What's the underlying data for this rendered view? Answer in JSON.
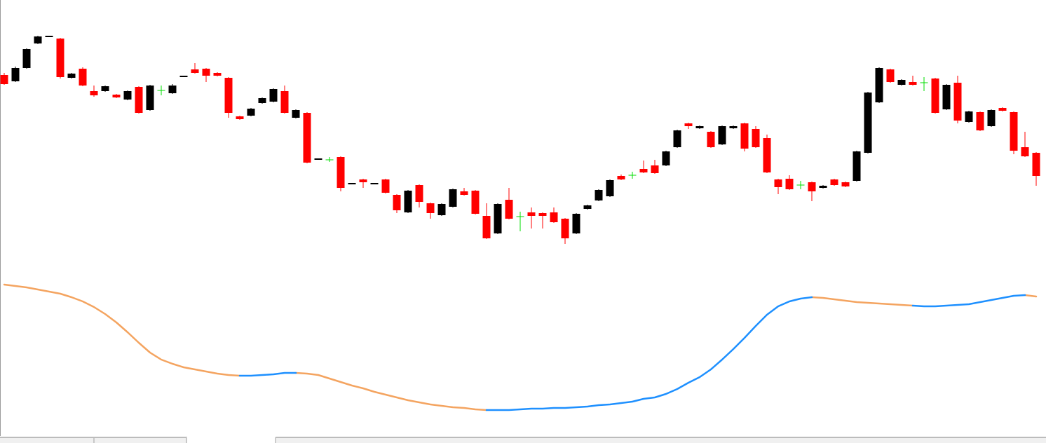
{
  "chart_data": [
    {
      "type": "candlestick",
      "ylim": [
        0,
        400
      ],
      "up_color": "#000000",
      "down_color": "#ff0000",
      "doji_color": "#00dd00",
      "open": [
        293,
        284,
        303,
        338,
        347,
        345,
        289,
        302,
        270,
        270,
        265,
        258,
        276,
        243,
        271,
        267,
        290,
        301,
        302,
        296,
        289,
        234,
        235,
        253,
        255,
        270,
        232,
        239,
        172,
        172,
        176,
        137,
        144,
        137,
        144,
        122,
        97,
        136,
        110,
        93,
        105,
        127,
        128,
        92,
        67,
        115,
        91,
        97,
        96,
        97,
        88,
        67,
        102,
        114,
        120,
        149,
        150,
        159,
        164,
        164,
        190,
        224,
        217,
        212,
        194,
        217,
        224,
        216,
        203,
        144,
        145,
        136,
        140,
        132,
        144,
        140,
        142,
        182,
        254,
        301,
        279,
        283,
        282,
        288,
        244,
        282,
        226,
        240,
        220,
        246,
        240,
        190,
        182
      ],
      "high": [
        296,
        305,
        331,
        349,
        349,
        346,
        296,
        304,
        278,
        278,
        266,
        271,
        277,
        279,
        278,
        280,
        292,
        310,
        303,
        297,
        290,
        235,
        246,
        261,
        274,
        278,
        244,
        240,
        174,
        176,
        177,
        139,
        145,
        139,
        145,
        123,
        129,
        137,
        111,
        110,
        131,
        132,
        129,
        110,
        110,
        132,
        98,
        104,
        97,
        104,
        89,
        96,
        108,
        130,
        144,
        151,
        155,
        171,
        172,
        185,
        215,
        225,
        221,
        213,
        221,
        221,
        225,
        220,
        208,
        145,
        150,
        142,
        141,
        136,
        145,
        141,
        185,
        269,
        304,
        302,
        287,
        292,
        290,
        289,
        280,
        292,
        242,
        241,
        244,
        247,
        241,
        212,
        183
      ],
      "low": [
        279,
        283,
        302,
        337,
        347,
        288,
        288,
        277,
        262,
        269,
        260,
        257,
        238,
        242,
        264,
        266,
        290,
        295,
        283,
        291,
        232,
        229,
        234,
        252,
        254,
        238,
        231,
        167,
        172,
        169,
        127,
        137,
        132,
        137,
        124,
        96,
        96,
        104,
        88,
        92,
        104,
        121,
        94,
        59,
        66,
        87,
        70,
        74,
        74,
        82,
        52,
        66,
        101,
        113,
        119,
        143,
        145,
        153,
        152,
        163,
        189,
        216,
        216,
        189,
        193,
        216,
        184,
        189,
        153,
        123,
        129,
        130,
        113,
        131,
        135,
        133,
        141,
        181,
        253,
        282,
        278,
        278,
        270,
        238,
        243,
        224,
        225,
        213,
        219,
        241,
        180,
        176,
        135
      ],
      "close": [
        280,
        303,
        330,
        348,
        349,
        290,
        295,
        278,
        264,
        277,
        261,
        270,
        239,
        278,
        271,
        278,
        292,
        296,
        292,
        292,
        239,
        230,
        245,
        260,
        273,
        239,
        243,
        168,
        174,
        172,
        132,
        139,
        140,
        139,
        125,
        100,
        128,
        112,
        96,
        109,
        130,
        122,
        95,
        60,
        109,
        88,
        91,
        92,
        92,
        83,
        60,
        95,
        107,
        129,
        143,
        144,
        150,
        154,
        153,
        184,
        214,
        220,
        220,
        190,
        220,
        220,
        188,
        190,
        154,
        133,
        130,
        136,
        127,
        135,
        136,
        134,
        184,
        268,
        303,
        283,
        286,
        279,
        282,
        239,
        279,
        228,
        241,
        214,
        243,
        242,
        185,
        177,
        149
      ]
    },
    {
      "type": "line",
      "ylim": [
        0,
        220
      ],
      "series": [
        {
          "color": "#f4a460",
          "values": [
            214,
            212,
            210,
            207,
            204,
            201,
            196,
            190,
            182,
            172,
            160,
            146,
            131,
            117,
            107,
            101,
            96,
            93,
            90,
            87,
            85,
            84,
            null,
            null,
            null,
            null,
            88,
            87,
            85,
            80,
            75,
            70,
            66,
            61,
            57,
            53,
            49,
            46,
            43,
            41,
            39,
            38,
            36,
            35,
            null,
            null,
            null,
            null,
            null,
            null,
            null,
            null,
            null,
            null,
            null,
            null,
            null,
            null,
            null,
            null,
            null,
            null,
            null,
            null,
            null,
            null,
            null,
            null,
            null,
            null,
            null,
            null,
            196,
            195,
            193,
            191,
            189,
            188,
            187,
            186,
            185,
            184,
            null,
            null,
            null,
            null,
            null,
            null,
            null,
            null,
            null,
            199,
            197
          ]
        },
        {
          "color": "#1e90ff",
          "values": [
            null,
            null,
            null,
            null,
            null,
            null,
            null,
            null,
            null,
            null,
            null,
            null,
            null,
            null,
            null,
            null,
            null,
            null,
            null,
            null,
            null,
            84,
            84,
            85,
            86,
            88,
            88,
            null,
            null,
            null,
            null,
            null,
            null,
            null,
            null,
            null,
            null,
            null,
            null,
            null,
            null,
            null,
            null,
            35,
            35,
            35,
            36,
            37,
            37,
            38,
            38,
            39,
            40,
            42,
            43,
            45,
            47,
            51,
            53,
            58,
            65,
            74,
            82,
            93,
            107,
            122,
            138,
            155,
            171,
            183,
            190,
            194,
            196,
            null,
            null,
            null,
            null,
            null,
            null,
            null,
            null,
            184,
            183,
            183,
            184,
            185,
            186,
            189,
            192,
            195,
            198,
            199,
            null
          ]
        }
      ]
    }
  ]
}
